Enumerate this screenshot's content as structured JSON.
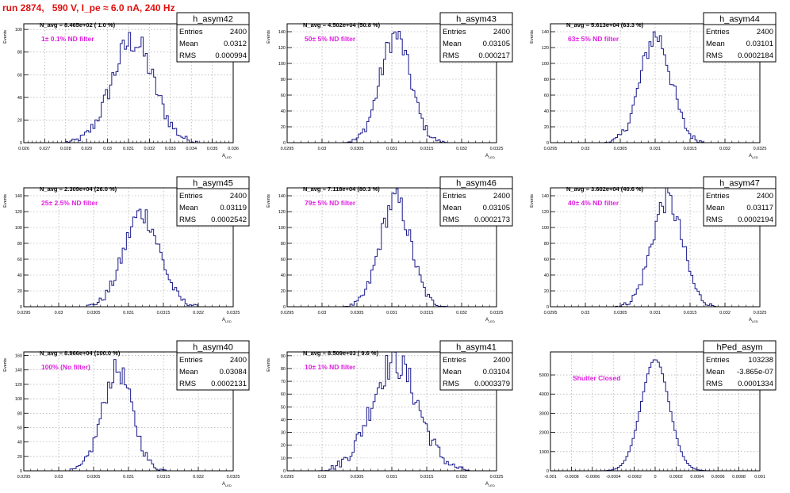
{
  "page": {
    "run_title": "run 2874,   590 V, I_pe ≈ 6.0 nA, 240 Hz",
    "colors": {
      "hist": "#1a1a8c",
      "label": "#e020e0",
      "title": "#e01010",
      "grid": "#999999"
    }
  },
  "chart_data": [
    {
      "type": "histogram",
      "name": "h_asym42",
      "navg": "N_avg = 8.465e+02 ( 1.0 %)",
      "filter": "1± 0.1% ND filter",
      "entries": "2400",
      "mean": "0.0312",
      "rms": "0.000994",
      "ylabel": "Events",
      "xlabel": "A_LED",
      "xlim": [
        0.026,
        0.036
      ],
      "ylim": [
        0,
        105
      ],
      "xticks": [
        0.026,
        0.027,
        0.028,
        0.029,
        0.03,
        0.031,
        0.032,
        0.033,
        0.034,
        0.035,
        0.036
      ],
      "xtick_labels": [
        "0.026",
        "0.027",
        "0.028",
        "0.029",
        "0.03",
        "0.031",
        "0.032",
        "0.033",
        "0.034",
        "0.035",
        "0.036"
      ],
      "yticks": [
        0,
        20,
        40,
        60,
        80,
        100
      ],
      "ytick_labels": [
        "0",
        "20",
        "40",
        "60",
        "80",
        "100"
      ],
      "gauss": {
        "mu": 0.0312,
        "sigma": 0.000994,
        "peak": 90
      }
    },
    {
      "type": "histogram",
      "name": "h_asym43",
      "navg": "N_avg = 4.502e+04 (50.8 %)",
      "filter": "50± 5% ND filter",
      "entries": "2400",
      "mean": "0.03105",
      "rms": "0.000217",
      "ylabel": "Events",
      "xlabel": "A_LED",
      "xlim": [
        0.0295,
        0.0325
      ],
      "ylim": [
        0,
        150
      ],
      "xticks": [
        0.0295,
        0.03,
        0.0305,
        0.031,
        0.0315,
        0.032,
        0.0325
      ],
      "xtick_labels": [
        "0.0295",
        "0.03",
        "0.0305",
        "0.031",
        "0.0315",
        "0.032",
        "0.0325"
      ],
      "yticks": [
        0,
        20,
        40,
        60,
        80,
        100,
        120,
        140
      ],
      "ytick_labels": [
        "0",
        "20",
        "40",
        "60",
        "80",
        "100",
        "120",
        "140"
      ],
      "gauss": {
        "mu": 0.03105,
        "sigma": 0.000217,
        "peak": 135
      }
    },
    {
      "type": "histogram",
      "name": "h_asym44",
      "navg": "N_avg = 5.613e+04 (63.3 %)",
      "filter": "63± 5% ND filter",
      "entries": "2400",
      "mean": "0.03101",
      "rms": "0.0002184",
      "ylabel": "Events",
      "xlabel": "A_LED",
      "xlim": [
        0.0295,
        0.0325
      ],
      "ylim": [
        0,
        150
      ],
      "xticks": [
        0.0295,
        0.03,
        0.0305,
        0.031,
        0.0315,
        0.032,
        0.0325
      ],
      "xtick_labels": [
        "0.0295",
        "0.03",
        "0.0305",
        "0.031",
        "0.0315",
        "0.032",
        "0.0325"
      ],
      "yticks": [
        0,
        20,
        40,
        60,
        80,
        100,
        120,
        140
      ],
      "ytick_labels": [
        "0",
        "20",
        "40",
        "60",
        "80",
        "100",
        "120",
        "140"
      ],
      "gauss": {
        "mu": 0.03101,
        "sigma": 0.0002184,
        "peak": 135
      }
    },
    {
      "type": "histogram",
      "name": "h_asym45",
      "navg": "N_avg = 2.309e+04 (26.0 %)",
      "filter": "25± 2.5% ND filter",
      "entries": "2400",
      "mean": "0.03119",
      "rms": "0.0002542",
      "ylabel": "Events",
      "xlabel": "A_LED",
      "xlim": [
        0.0295,
        0.0325
      ],
      "ylim": [
        0,
        150
      ],
      "xticks": [
        0.0295,
        0.03,
        0.0305,
        0.031,
        0.0315,
        0.032,
        0.0325
      ],
      "xtick_labels": [
        "0.0295",
        "0.03",
        "0.0305",
        "0.031",
        "0.0315",
        "0.032",
        "0.0325"
      ],
      "yticks": [
        0,
        20,
        40,
        60,
        80,
        100,
        120,
        140
      ],
      "ytick_labels": [
        "0",
        "20",
        "40",
        "60",
        "80",
        "100",
        "120",
        "140"
      ],
      "gauss": {
        "mu": 0.03119,
        "sigma": 0.0002542,
        "peak": 118
      }
    },
    {
      "type": "histogram",
      "name": "h_asym46",
      "navg": "N_avg = 7.118e+04 (80.3 %)",
      "filter": "79± 5% ND filter",
      "entries": "2400",
      "mean": "0.03105",
      "rms": "0.0002173",
      "ylabel": "Events",
      "xlabel": "A_LED",
      "xlim": [
        0.0295,
        0.0325
      ],
      "ylim": [
        0,
        150
      ],
      "xticks": [
        0.0295,
        0.03,
        0.0305,
        0.031,
        0.0315,
        0.032,
        0.0325
      ],
      "xtick_labels": [
        "0.0295",
        "0.03",
        "0.0305",
        "0.031",
        "0.0315",
        "0.032",
        "0.0325"
      ],
      "yticks": [
        0,
        20,
        40,
        60,
        80,
        100,
        120,
        140
      ],
      "ytick_labels": [
        "0",
        "20",
        "40",
        "60",
        "80",
        "100",
        "120",
        "140"
      ],
      "gauss": {
        "mu": 0.03105,
        "sigma": 0.0002173,
        "peak": 135
      }
    },
    {
      "type": "histogram",
      "name": "h_asym47",
      "navg": "N_avg = 3.602e+04 (40.6 %)",
      "filter": "40± 4% ND filter",
      "entries": "2400",
      "mean": "0.03117",
      "rms": "0.0002194",
      "ylabel": "Events",
      "xlabel": "A_LED",
      "xlim": [
        0.0295,
        0.0325
      ],
      "ylim": [
        0,
        150
      ],
      "xticks": [
        0.0295,
        0.03,
        0.0305,
        0.031,
        0.0315,
        0.032,
        0.0325
      ],
      "xtick_labels": [
        "0.0295",
        "0.03",
        "0.0305",
        "0.031",
        "0.0315",
        "0.032",
        "0.0325"
      ],
      "yticks": [
        0,
        20,
        40,
        60,
        80,
        100,
        120,
        140
      ],
      "ytick_labels": [
        "0",
        "20",
        "40",
        "60",
        "80",
        "100",
        "120",
        "140"
      ],
      "gauss": {
        "mu": 0.03117,
        "sigma": 0.0002194,
        "peak": 135
      }
    },
    {
      "type": "histogram",
      "name": "h_asym40",
      "navg": "N_avg = 8.866e+04 (100.0 %)",
      "filter": "100% (No filter)",
      "entries": "2400",
      "mean": "0.03084",
      "rms": "0.0002131",
      "ylabel": "Events",
      "xlabel": "A_LED",
      "xlim": [
        0.0295,
        0.0325
      ],
      "ylim": [
        0,
        165
      ],
      "xticks": [
        0.0295,
        0.03,
        0.0305,
        0.031,
        0.0315,
        0.032,
        0.0325
      ],
      "xtick_labels": [
        "0.0295",
        "0.03",
        "0.0305",
        "0.031",
        "0.0315",
        "0.032",
        "0.0325"
      ],
      "yticks": [
        0,
        20,
        40,
        60,
        80,
        100,
        120,
        140,
        160
      ],
      "ytick_labels": [
        "0",
        "20",
        "40",
        "60",
        "80",
        "100",
        "120",
        "140",
        "160"
      ],
      "gauss": {
        "mu": 0.03084,
        "sigma": 0.0002131,
        "peak": 140
      }
    },
    {
      "type": "histogram",
      "name": "h_asym41",
      "navg": "N_avg = 8.509e+03 ( 9.6 %)",
      "filter": "10± 1% ND filter",
      "entries": "2400",
      "mean": "0.03104",
      "rms": "0.0003379",
      "ylabel": "Events",
      "xlabel": "A_LED",
      "xlim": [
        0.0295,
        0.0325
      ],
      "ylim": [
        0,
        93
      ],
      "xticks": [
        0.0295,
        0.03,
        0.0305,
        0.031,
        0.0315,
        0.032,
        0.0325
      ],
      "xtick_labels": [
        "0.0295",
        "0.03",
        "0.0305",
        "0.031",
        "0.0315",
        "0.032",
        "0.0325"
      ],
      "yticks": [
        0,
        10,
        20,
        30,
        40,
        50,
        60,
        70,
        80,
        90
      ],
      "ytick_labels": [
        "0",
        "10",
        "20",
        "30",
        "40",
        "50",
        "60",
        "70",
        "80",
        "90"
      ],
      "gauss": {
        "mu": 0.03104,
        "sigma": 0.0003379,
        "peak": 85
      }
    },
    {
      "type": "histogram",
      "name": "hPed_asym",
      "navg": "",
      "filter": "Shutter Closed",
      "entries": "103238",
      "mean": "-3.865e-07",
      "rms": "0.0001334",
      "ylabel": "",
      "xlabel": "",
      "xlim": [
        -0.001,
        0.001
      ],
      "ylim": [
        0,
        6200
      ],
      "xticks": [
        -0.001,
        -0.0008,
        -0.0006,
        -0.0004,
        -0.0002,
        0,
        0.0002,
        0.0004,
        0.0006,
        0.0008,
        0.001
      ],
      "xtick_labels": [
        "-0.001",
        "-0.0008",
        "-0.0006",
        "-0.0004",
        "-0.0002",
        "0",
        "0.0002",
        "0.0004",
        "0.0006",
        "0.0008",
        "0.001"
      ],
      "yticks": [
        0,
        1000,
        2000,
        3000,
        4000,
        5000
      ],
      "ytick_labels": [
        "0",
        "1000",
        "2000",
        "3000",
        "4000",
        "5000"
      ],
      "gauss": {
        "mu": 0.0,
        "sigma": 0.0001334,
        "peak": 5800
      }
    }
  ]
}
